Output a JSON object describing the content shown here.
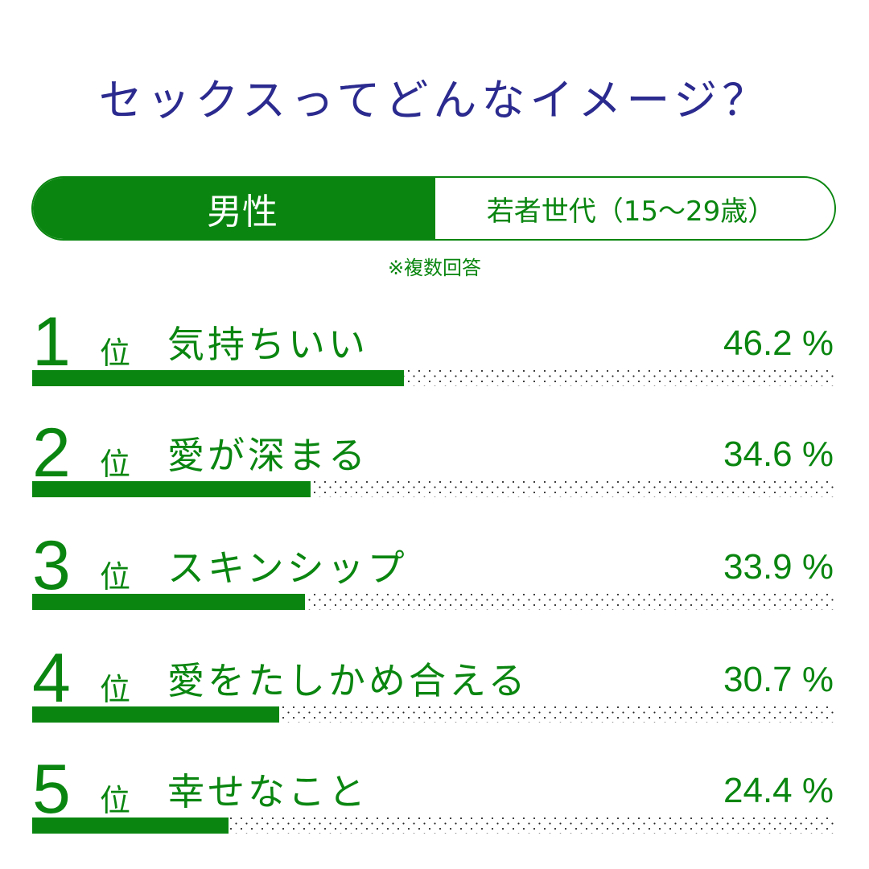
{
  "title": "セックスってどんなイメージ？",
  "segment": {
    "gender": "男性",
    "age_group": "若者世代（15〜29歳）"
  },
  "note": "※複数回答",
  "rank_suffix": "位",
  "colors": {
    "accent": "#0a8610",
    "title": "#2b2a8f",
    "track_dots": "#222222"
  },
  "rows": [
    {
      "rank": "1",
      "label": "気持ちいい",
      "value": 46.2,
      "value_text": "46.2 %"
    },
    {
      "rank": "2",
      "label": "愛が深まる",
      "value": 34.6,
      "value_text": "34.6 %"
    },
    {
      "rank": "3",
      "label": "スキンシップ",
      "value": 33.9,
      "value_text": "33.9 %"
    },
    {
      "rank": "4",
      "label": "愛をたしかめ合える",
      "value": 30.7,
      "value_text": "30.7 %"
    },
    {
      "rank": "5",
      "label": "幸せなこと",
      "value": 24.4,
      "value_text": "24.4 %"
    }
  ],
  "chart_data": {
    "type": "bar",
    "orientation": "horizontal",
    "title": "セックスってどんなイメージ？",
    "subtitle": "男性 若者世代（15〜29歳） ※複数回答",
    "categories": [
      "気持ちいい",
      "愛が深まる",
      "スキンシップ",
      "愛をたしかめ合える",
      "幸せなこと"
    ],
    "values": [
      46.2,
      34.6,
      33.9,
      30.7,
      24.4
    ],
    "unit": "%",
    "xlim": [
      0,
      100
    ],
    "xlabel": "",
    "ylabel": "",
    "grid": false,
    "legend": null
  }
}
